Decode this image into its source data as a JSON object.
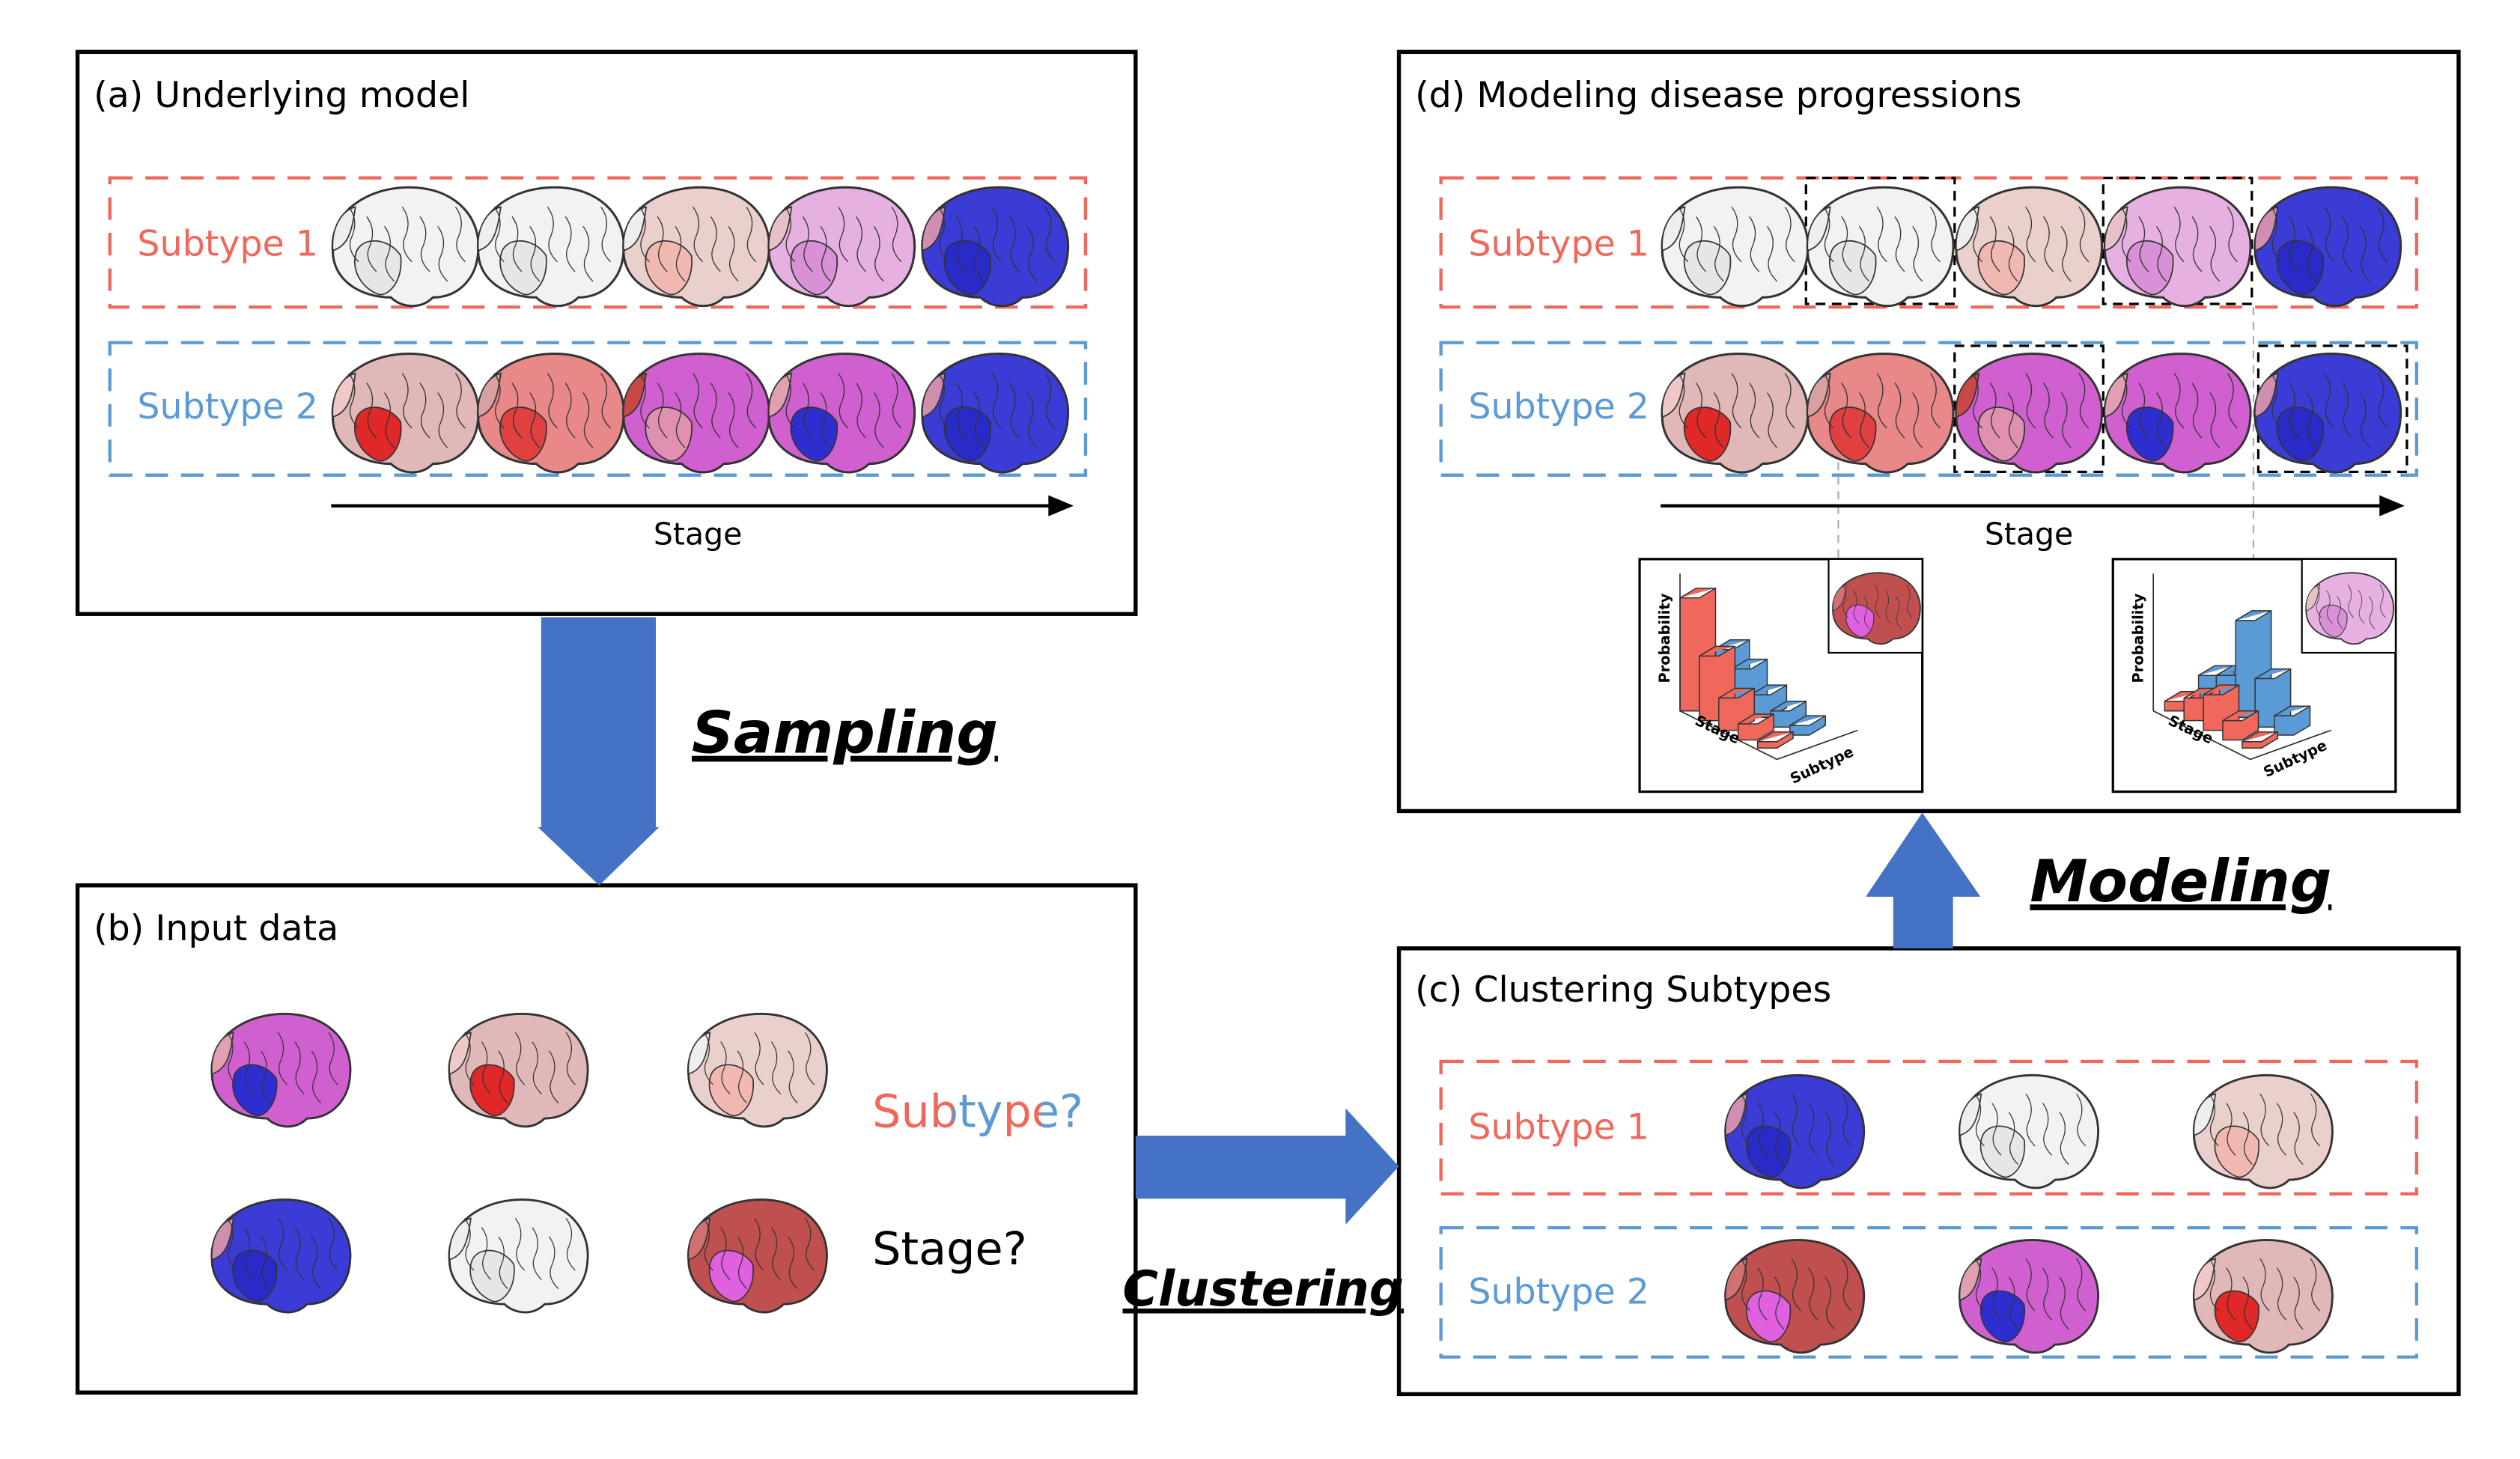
{
  "panel_a": {
    "title": "(a) Underlying model",
    "subtype_1": "Subtype 1",
    "subtype_2": "Subtype 2",
    "stage": "Stage"
  },
  "sampling": "Sampling",
  "panel_b": {
    "title": "(b) Input data",
    "subtype_question": "Subtype?",
    "stage_question": "Stage?"
  },
  "clustering": "Clustering",
  "panel_c": {
    "title": "(c) Clustering Subtypes",
    "subtype_1": "Subtype 1",
    "subtype_2": "Subtype 2"
  },
  "modeling": "Modeling",
  "panel_d": {
    "title": "(d) Modeling disease progressions",
    "subtype_1": "Subtype 1",
    "subtype_2": "Subtype 2",
    "stage": "Stage",
    "inset_1": {
      "y_label": "Probability",
      "x_label": "Stage",
      "z_label": "Subtype"
    },
    "inset_2": {
      "y_label": "Probability",
      "x_label": "Stage",
      "z_label": "Subtype"
    }
  }
}
